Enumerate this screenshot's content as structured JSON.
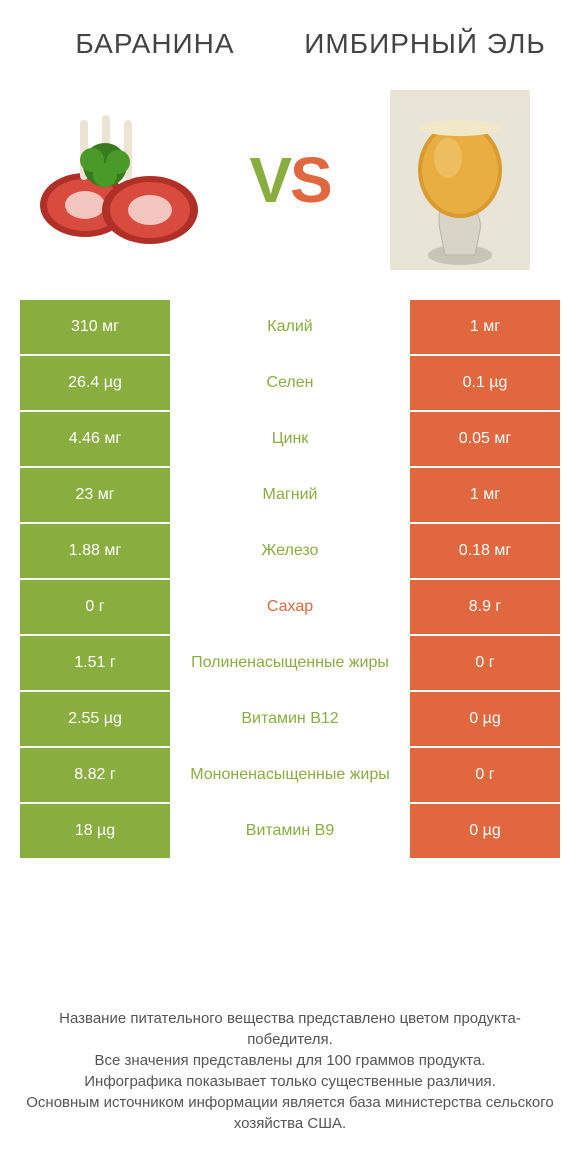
{
  "colors": {
    "green": "#8aad3f",
    "orange": "#e0673e",
    "mid_text_green": "#8aad3f",
    "mid_text_orange": "#e0673e",
    "bg": "#ffffff"
  },
  "title_left": "БАРАНИНА",
  "title_right": "ИМБИРНЫЙ ЭЛЬ",
  "vs_v": "V",
  "vs_s": "S",
  "rows": [
    {
      "left": "310 мг",
      "mid": "Калий",
      "right": "1 мг",
      "winner": "left"
    },
    {
      "left": "26.4 µg",
      "mid": "Селен",
      "right": "0.1 µg",
      "winner": "left"
    },
    {
      "left": "4.46 мг",
      "mid": "Цинк",
      "right": "0.05 мг",
      "winner": "left"
    },
    {
      "left": "23 мг",
      "mid": "Магний",
      "right": "1 мг",
      "winner": "left"
    },
    {
      "left": "1.88 мг",
      "mid": "Железо",
      "right": "0.18 мг",
      "winner": "left"
    },
    {
      "left": "0 г",
      "mid": "Сахар",
      "right": "8.9 г",
      "winner": "right"
    },
    {
      "left": "1.51 г",
      "mid": "Полиненасыщенные жиры",
      "right": "0 г",
      "winner": "left"
    },
    {
      "left": "2.55 µg",
      "mid": "Витамин B12",
      "right": "0 µg",
      "winner": "left"
    },
    {
      "left": "8.82 г",
      "mid": "Мононенасыщенные жиры",
      "right": "0 г",
      "winner": "left"
    },
    {
      "left": "18 µg",
      "mid": "Витамин B9",
      "right": "0 µg",
      "winner": "left"
    }
  ],
  "footer": "Название питательного вещества представлено цветом продукта-победителя.\nВсе значения представлены для 100 граммов продукта.\nИнфографика показывает только существенные различия.\nОсновным источником информации является база министерства сельского хозяйства США."
}
